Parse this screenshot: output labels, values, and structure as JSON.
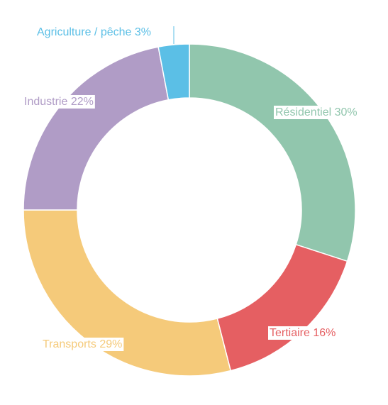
{
  "chart_data": {
    "type": "pie",
    "variant": "donut",
    "title": "",
    "categories": [
      "Résidentiel",
      "Tertiaire",
      "Transports",
      "Industrie",
      "Agriculture / pêche"
    ],
    "values": [
      30,
      16,
      29,
      22,
      3
    ],
    "unit": "%",
    "labels": [
      "Résidentiel 30%",
      "Tertiaire 16%",
      "Transports 29%",
      "Industrie 22%",
      "Agriculture / pêche 3%"
    ],
    "colors": [
      "#91c6ad",
      "#e55f62",
      "#f5ca7a",
      "#b09cc6",
      "#5bbfe6"
    ],
    "start": "top",
    "direction": "clockwise",
    "legend": "none"
  }
}
